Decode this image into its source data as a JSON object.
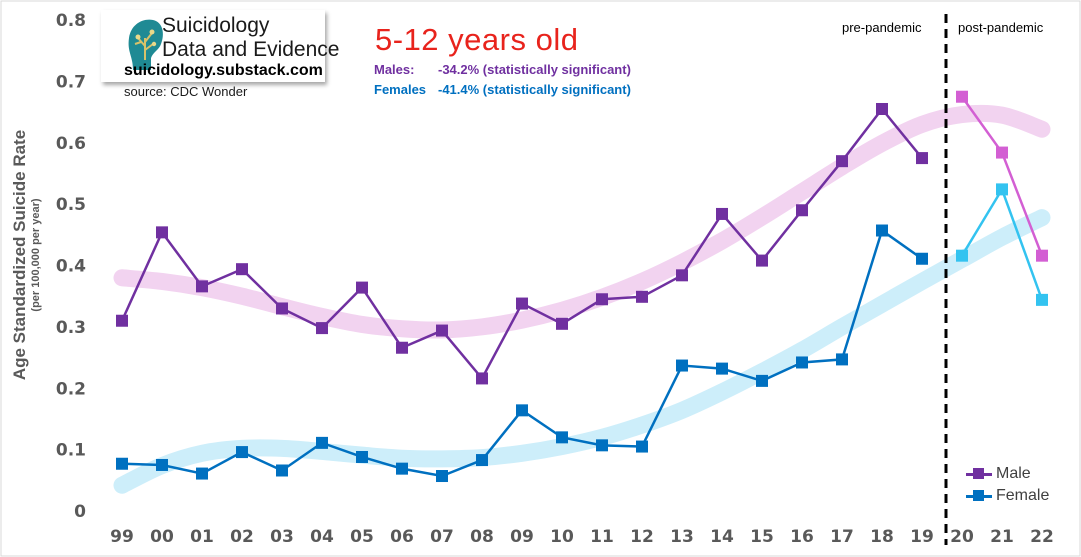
{
  "branding": {
    "line1": "Suicidology",
    "line2": "Data and Evidence",
    "url": "suicidology.substack.com",
    "source": "source: CDC Wonder"
  },
  "title": "5-12 years old",
  "stats": {
    "male_label": "Males:",
    "male_value": "-34.2% (statistically significant)",
    "female_label": "Females",
    "female_value": "-41.4% (statistically significant)"
  },
  "periods": {
    "pre": "pre-pandemic",
    "post": "post-pandemic"
  },
  "colors": {
    "male": "#7030a0",
    "male_post": "#d35fd3",
    "male_trend": "#f2d3f0",
    "female": "#0070c0",
    "female_post": "#33c3f0",
    "female_trend": "#cdeefa",
    "divider": "#000000"
  },
  "chart_data": {
    "type": "line",
    "title": "5-12 years old",
    "xlabel": "",
    "ylabel": "Age Standardized Suicide Rate",
    "ylabel_sub": "(per 100,000 per year)",
    "ylim": [
      0,
      0.8
    ],
    "yticks": [
      "0",
      "0.1",
      "0.2",
      "0.3",
      "0.4",
      "0.5",
      "0.6",
      "0.7",
      "0.8"
    ],
    "categories": [
      "99",
      "00",
      "01",
      "02",
      "03",
      "04",
      "05",
      "06",
      "07",
      "08",
      "09",
      "10",
      "11",
      "12",
      "13",
      "14",
      "15",
      "16",
      "17",
      "18",
      "19",
      "20",
      "21",
      "22"
    ],
    "pandemic_split_after": "19",
    "grid": false,
    "legend_position": "bottom-right",
    "series": [
      {
        "name": "Male",
        "values": [
          0.31,
          0.454,
          0.366,
          0.394,
          0.33,
          0.298,
          0.364,
          0.266,
          0.294,
          0.216,
          0.338,
          0.305,
          0.345,
          0.349,
          0.384,
          0.484,
          0.408,
          0.49,
          0.57,
          0.655,
          0.575,
          0.675,
          0.584,
          0.416
        ]
      },
      {
        "name": "Female",
        "values": [
          0.077,
          0.075,
          0.061,
          0.096,
          0.066,
          0.111,
          0.088,
          0.069,
          0.057,
          0.083,
          0.164,
          0.12,
          0.107,
          0.105,
          0.237,
          0.232,
          0.212,
          0.242,
          0.247,
          0.457,
          0.411,
          0.416,
          0.524,
          0.344
        ]
      }
    ],
    "trend_lines": [
      {
        "of": "Male",
        "values": [
          0.38,
          0.374,
          0.364,
          0.35,
          0.333,
          0.317,
          0.304,
          0.297,
          0.295,
          0.3,
          0.311,
          0.327,
          0.348,
          0.374,
          0.405,
          0.44,
          0.479,
          0.52,
          0.561,
          0.599,
          0.63,
          0.646,
          0.645,
          0.622
        ]
      },
      {
        "of": "Female",
        "values": [
          0.042,
          0.074,
          0.094,
          0.102,
          0.102,
          0.097,
          0.091,
          0.086,
          0.085,
          0.087,
          0.094,
          0.105,
          0.12,
          0.14,
          0.164,
          0.194,
          0.227,
          0.262,
          0.3,
          0.337,
          0.374,
          0.41,
          0.446,
          0.478
        ]
      }
    ]
  }
}
